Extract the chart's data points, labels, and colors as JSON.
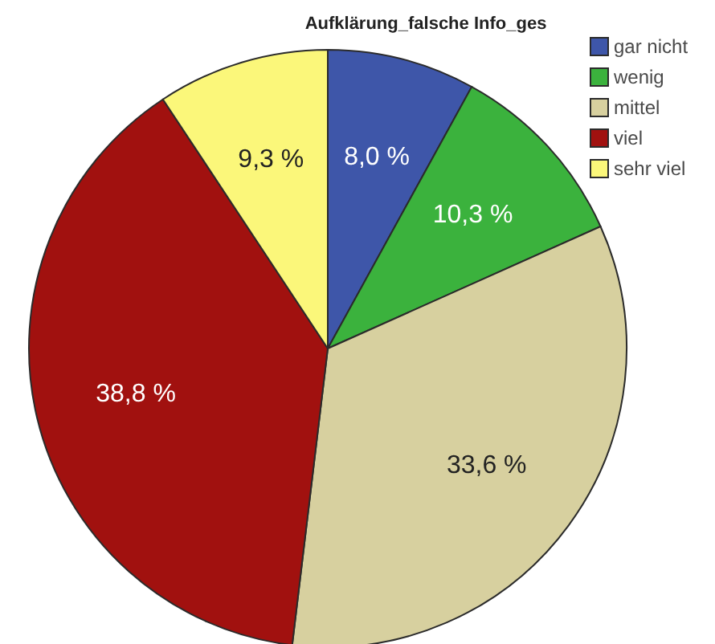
{
  "chart_data": {
    "type": "pie",
    "title": "Aufklärung_falsche Info_ges",
    "categories": [
      "gar nicht",
      "wenig",
      "mittel",
      "viel",
      "sehr viel"
    ],
    "values": [
      8.0,
      10.3,
      33.6,
      38.8,
      9.3
    ],
    "colors": [
      "#3e56a9",
      "#3bb23d",
      "#d7d09f",
      "#a1110f",
      "#fbf77a"
    ],
    "value_labels": [
      "8,0 %",
      "10,3 %",
      "33,6 %",
      "38,8 %",
      "9,3 %"
    ],
    "legend": "top right"
  }
}
